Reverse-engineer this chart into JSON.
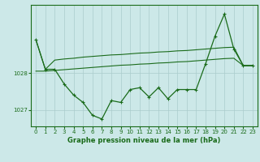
{
  "title": "Graphe pression niveau de la mer (hPa)",
  "background_color": "#cce8e8",
  "grid_color": "#aacccc",
  "line_color": "#1a6b1a",
  "hours": [
    0,
    1,
    2,
    3,
    4,
    5,
    6,
    7,
    8,
    9,
    10,
    11,
    12,
    13,
    14,
    15,
    16,
    17,
    18,
    19,
    20,
    21,
    22,
    23
  ],
  "pressure": [
    1028.9,
    1028.1,
    1028.1,
    1027.7,
    1027.4,
    1027.2,
    1026.85,
    1026.75,
    1027.25,
    1027.2,
    1027.55,
    1027.6,
    1027.35,
    1027.6,
    1027.3,
    1027.55,
    1027.55,
    1027.55,
    1028.25,
    1029.0,
    1029.6,
    1028.65,
    1028.2,
    1028.2
  ],
  "upper_line": [
    1028.9,
    1028.1,
    1028.35,
    1028.38,
    1028.4,
    1028.43,
    1028.45,
    1028.47,
    1028.49,
    1028.5,
    1028.52,
    1028.54,
    1028.55,
    1028.57,
    1028.58,
    1028.6,
    1028.61,
    1028.63,
    1028.65,
    1028.67,
    1028.69,
    1028.7,
    1028.2,
    1028.2
  ],
  "lower_line": [
    1028.05,
    1028.05,
    1028.07,
    1028.09,
    1028.11,
    1028.13,
    1028.15,
    1028.17,
    1028.19,
    1028.21,
    1028.22,
    1028.24,
    1028.25,
    1028.27,
    1028.28,
    1028.3,
    1028.31,
    1028.33,
    1028.35,
    1028.37,
    1028.39,
    1028.4,
    1028.2,
    1028.2
  ],
  "ylim": [
    1026.55,
    1029.85
  ],
  "yticks": [
    1027,
    1028
  ],
  "xlim": [
    -0.5,
    23.5
  ],
  "tick_fontsize": 5.0,
  "label_fontsize": 6.0
}
